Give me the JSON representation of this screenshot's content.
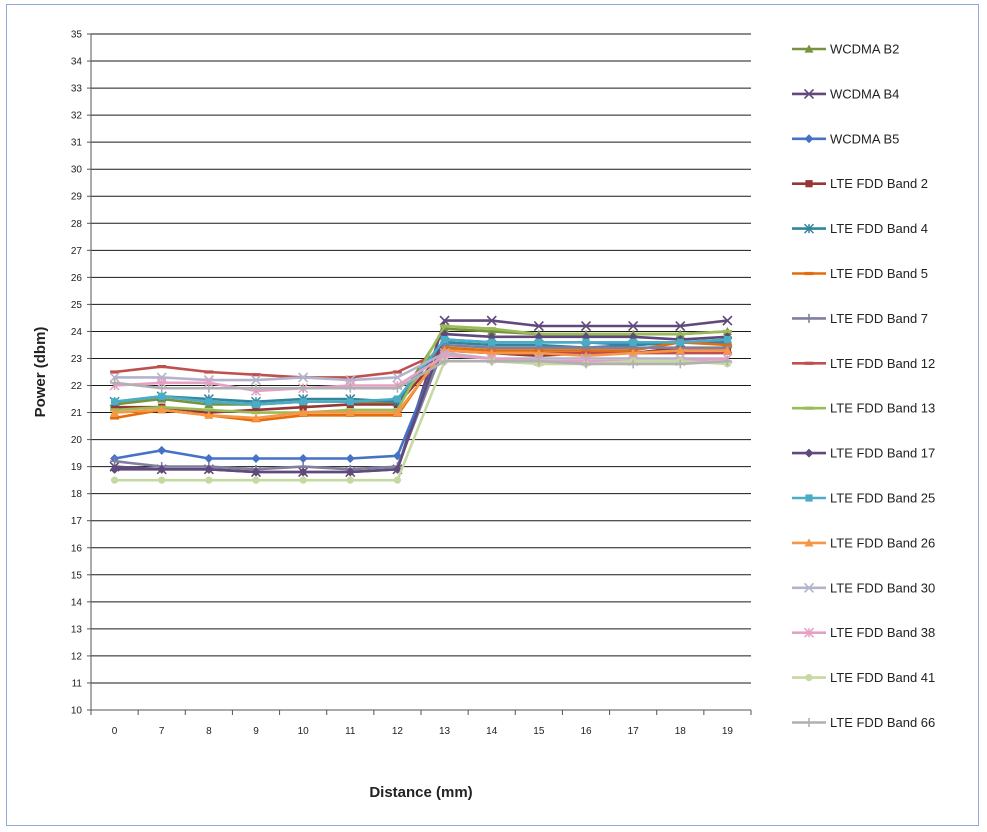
{
  "chart_data": {
    "type": "line",
    "title": "",
    "xlabel": "Distance (mm)",
    "ylabel": "Power (dbm)",
    "categories": [
      "0",
      "7",
      "8",
      "9",
      "10",
      "11",
      "12",
      "13",
      "14",
      "15",
      "16",
      "17",
      "18",
      "19"
    ],
    "ylim": [
      10,
      35
    ],
    "yticks": [
      10,
      11,
      12,
      13,
      14,
      15,
      16,
      17,
      18,
      19,
      20,
      21,
      22,
      23,
      24,
      25,
      26,
      27,
      28,
      29,
      30,
      31,
      32,
      33,
      34,
      35
    ],
    "grid": true,
    "legend_position": "right",
    "series": [
      {
        "name": "WCDMA B2",
        "color": "#77933c",
        "marker": "triangle",
        "values": [
          21.3,
          21.5,
          21.3,
          21.3,
          21.4,
          21.4,
          21.4,
          24.1,
          24.0,
          23.9,
          23.9,
          23.9,
          23.9,
          24.0
        ]
      },
      {
        "name": "WCDMA B4",
        "color": "#604a7b",
        "marker": "x",
        "values": [
          19.0,
          18.9,
          18.9,
          18.8,
          18.8,
          18.8,
          18.9,
          24.4,
          24.4,
          24.2,
          24.2,
          24.2,
          24.2,
          24.4
        ]
      },
      {
        "name": "WCDMA B5",
        "color": "#4472c4",
        "marker": "diamond",
        "values": [
          19.3,
          19.6,
          19.3,
          19.3,
          19.3,
          19.3,
          19.4,
          23.7,
          23.6,
          23.6,
          23.6,
          23.5,
          23.6,
          23.6
        ]
      },
      {
        "name": "LTE FDD Band 2",
        "color": "#953735",
        "marker": "square",
        "values": [
          21.2,
          21.2,
          21.0,
          21.1,
          21.2,
          21.3,
          21.3,
          23.3,
          23.2,
          23.1,
          23.2,
          23.2,
          23.4,
          23.3
        ]
      },
      {
        "name": "LTE FDD Band 4",
        "color": "#31859c",
        "marker": "asterisk",
        "values": [
          21.4,
          21.6,
          21.5,
          21.4,
          21.5,
          21.5,
          21.4,
          23.6,
          23.5,
          23.5,
          23.4,
          23.5,
          23.6,
          23.6
        ]
      },
      {
        "name": "LTE FDD Band 5",
        "color": "#e46c0a",
        "marker": "dash",
        "values": [
          20.8,
          21.1,
          20.9,
          20.7,
          20.9,
          20.9,
          20.9,
          23.4,
          23.3,
          23.3,
          23.3,
          23.3,
          23.6,
          23.5
        ]
      },
      {
        "name": "LTE FDD Band 7",
        "color": "#7f7f9f",
        "marker": "plus",
        "values": [
          19.2,
          19.0,
          19.0,
          18.9,
          19.0,
          18.9,
          19.0,
          23.5,
          23.4,
          23.4,
          23.4,
          23.4,
          23.4,
          23.4
        ]
      },
      {
        "name": "LTE FDD Band 12",
        "color": "#c0504d",
        "marker": "dash",
        "values": [
          22.5,
          22.7,
          22.5,
          22.4,
          22.3,
          22.3,
          22.5,
          23.3,
          23.2,
          23.2,
          23.2,
          23.2,
          23.2,
          23.2
        ]
      },
      {
        "name": "LTE FDD Band 13",
        "color": "#9bbb59",
        "marker": "dash",
        "values": [
          21.1,
          21.2,
          21.1,
          21.0,
          21.0,
          21.1,
          21.1,
          24.2,
          24.1,
          23.9,
          23.9,
          23.9,
          23.9,
          24.0
        ]
      },
      {
        "name": "LTE FDD Band 17",
        "color": "#604a7b",
        "marker": "diamond",
        "values": [
          18.9,
          18.9,
          18.9,
          18.8,
          18.8,
          18.8,
          18.9,
          23.9,
          23.8,
          23.8,
          23.8,
          23.8,
          23.7,
          23.8
        ]
      },
      {
        "name": "LTE FDD Band 25",
        "color": "#4bacc6",
        "marker": "square",
        "values": [
          21.4,
          21.6,
          21.4,
          21.3,
          21.4,
          21.4,
          21.5,
          23.7,
          23.6,
          23.6,
          23.6,
          23.6,
          23.6,
          23.7
        ]
      },
      {
        "name": "LTE FDD Band 26",
        "color": "#f79646",
        "marker": "triangle",
        "values": [
          21.0,
          21.1,
          20.9,
          20.8,
          21.0,
          21.0,
          21.0,
          23.3,
          23.2,
          23.2,
          23.1,
          23.2,
          23.3,
          23.3
        ]
      },
      {
        "name": "LTE FDD Band 30",
        "color": "#b3b3cc",
        "marker": "x",
        "values": [
          22.3,
          22.3,
          22.2,
          22.2,
          22.3,
          22.2,
          22.3,
          23.2,
          23.0,
          23.0,
          23.0,
          23.0,
          23.0,
          23.0
        ]
      },
      {
        "name": "LTE FDD Band 38",
        "color": "#e6a0c4",
        "marker": "asterisk",
        "values": [
          22.0,
          22.1,
          22.1,
          21.8,
          21.9,
          22.0,
          22.0,
          23.1,
          23.0,
          22.9,
          22.9,
          22.9,
          22.9,
          23.0
        ]
      },
      {
        "name": "LTE FDD Band 41",
        "color": "#c6d9a0",
        "marker": "circle",
        "values": [
          18.5,
          18.5,
          18.5,
          18.5,
          18.5,
          18.5,
          18.5,
          22.9,
          22.9,
          22.8,
          22.8,
          22.9,
          22.9,
          22.8
        ]
      },
      {
        "name": "LTE FDD Band 66",
        "color": "#b0b0b0",
        "marker": "plus",
        "values": [
          22.1,
          21.9,
          21.9,
          21.9,
          21.9,
          21.9,
          21.9,
          22.9,
          22.9,
          22.9,
          22.8,
          22.8,
          22.8,
          22.9
        ]
      }
    ]
  }
}
